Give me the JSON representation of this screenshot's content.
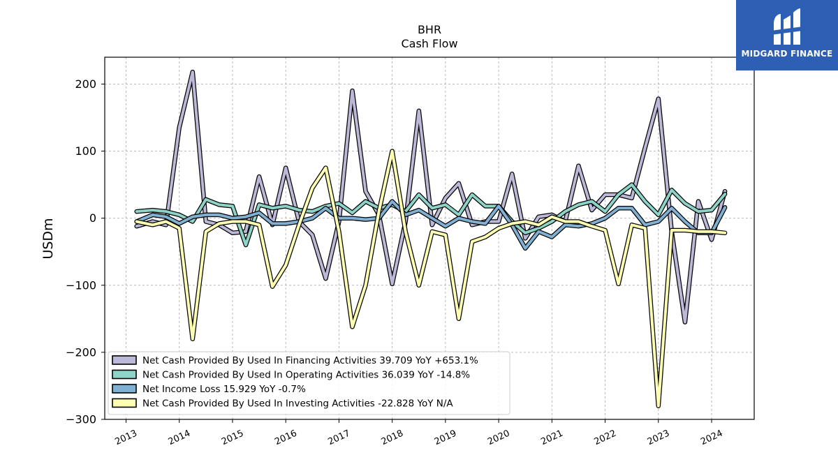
{
  "brand": {
    "name": "MIDGARD FINANCE",
    "bg_color": "#2d5fb4",
    "text_color": "#ffffff",
    "icon": "midgard-logo-icon"
  },
  "chart_data": {
    "type": "line",
    "title": "BHR",
    "subtitle": "Cash Flow",
    "xlabel": "",
    "ylabel": "USDm",
    "ylim": [
      -300,
      240
    ],
    "xlim": [
      2012.6,
      2024.8
    ],
    "yticks": [
      200,
      100,
      0,
      -100,
      -200,
      -300
    ],
    "ytick_labels": [
      "200",
      "100",
      "0",
      "−100",
      "−200",
      "−300"
    ],
    "xticks": [
      2013,
      2014,
      2015,
      2016,
      2017,
      2018,
      2019,
      2020,
      2021,
      2022,
      2023,
      2024
    ],
    "xtick_labels": [
      "2013",
      "2014",
      "2015",
      "2016",
      "2017",
      "2018",
      "2019",
      "2020",
      "2021",
      "2022",
      "2023",
      "2024"
    ],
    "grid": true,
    "legend_position": "lower-left",
    "series": [
      {
        "name": "Net Cash Provided By Used In Financing Activities",
        "legend_label": "Net Cash Provided By Used In Financing Activities  39.709 YoY +653.1%",
        "color": "#bcb9d8",
        "points": [
          [
            2013.2,
            -12
          ],
          [
            2013.5,
            -5
          ],
          [
            2013.75,
            -10
          ],
          [
            2014.0,
            135
          ],
          [
            2014.25,
            218
          ],
          [
            2014.5,
            -5
          ],
          [
            2014.75,
            -10
          ],
          [
            2015.0,
            -22
          ],
          [
            2015.25,
            -20
          ],
          [
            2015.5,
            62
          ],
          [
            2015.75,
            -10
          ],
          [
            2016.0,
            75
          ],
          [
            2016.25,
            -5
          ],
          [
            2016.5,
            -25
          ],
          [
            2016.75,
            -90
          ],
          [
            2017.0,
            -5
          ],
          [
            2017.25,
            190
          ],
          [
            2017.5,
            40
          ],
          [
            2017.75,
            5
          ],
          [
            2018.0,
            -98
          ],
          [
            2018.25,
            -5
          ],
          [
            2018.5,
            160
          ],
          [
            2018.75,
            -10
          ],
          [
            2019.0,
            30
          ],
          [
            2019.25,
            52
          ],
          [
            2019.5,
            -10
          ],
          [
            2019.75,
            -5
          ],
          [
            2020.0,
            -5
          ],
          [
            2020.25,
            66
          ],
          [
            2020.5,
            -30
          ],
          [
            2020.75,
            2
          ],
          [
            2021.0,
            5
          ],
          [
            2021.25,
            -5
          ],
          [
            2021.5,
            78
          ],
          [
            2021.75,
            12
          ],
          [
            2022.0,
            35
          ],
          [
            2022.25,
            35
          ],
          [
            2022.5,
            30
          ],
          [
            2022.75,
            105
          ],
          [
            2023.0,
            178
          ],
          [
            2023.25,
            -20
          ],
          [
            2023.5,
            -155
          ],
          [
            2023.75,
            25
          ],
          [
            2024.0,
            -32
          ],
          [
            2024.25,
            40
          ]
        ]
      },
      {
        "name": "Net Cash Provided By Used In Operating Activities",
        "legend_label": "Net Cash Provided By Used In Operating Activities  36.039 YoY -14.8%",
        "color": "#8dd3c7",
        "points": [
          [
            2013.2,
            10
          ],
          [
            2013.5,
            12
          ],
          [
            2013.75,
            10
          ],
          [
            2014.0,
            5
          ],
          [
            2014.25,
            -5
          ],
          [
            2014.5,
            28
          ],
          [
            2014.75,
            20
          ],
          [
            2015.0,
            18
          ],
          [
            2015.25,
            -40
          ],
          [
            2015.5,
            20
          ],
          [
            2015.75,
            15
          ],
          [
            2016.0,
            18
          ],
          [
            2016.25,
            12
          ],
          [
            2016.5,
            10
          ],
          [
            2016.75,
            18
          ],
          [
            2017.0,
            22
          ],
          [
            2017.25,
            8
          ],
          [
            2017.5,
            25
          ],
          [
            2017.75,
            15
          ],
          [
            2018.0,
            20
          ],
          [
            2018.25,
            10
          ],
          [
            2018.5,
            35
          ],
          [
            2018.75,
            15
          ],
          [
            2019.0,
            20
          ],
          [
            2019.25,
            5
          ],
          [
            2019.5,
            35
          ],
          [
            2019.75,
            18
          ],
          [
            2020.0,
            18
          ],
          [
            2020.25,
            -5
          ],
          [
            2020.5,
            -22
          ],
          [
            2020.75,
            -15
          ],
          [
            2021.0,
            -5
          ],
          [
            2021.25,
            10
          ],
          [
            2021.5,
            20
          ],
          [
            2021.75,
            25
          ],
          [
            2022.0,
            10
          ],
          [
            2022.25,
            35
          ],
          [
            2022.5,
            50
          ],
          [
            2022.75,
            25
          ],
          [
            2023.0,
            5
          ],
          [
            2023.25,
            42
          ],
          [
            2023.5,
            22
          ],
          [
            2023.75,
            10
          ],
          [
            2024.0,
            12
          ],
          [
            2024.25,
            36
          ]
        ]
      },
      {
        "name": "Net Income Loss",
        "legend_label": "Net Income Loss  15.929 YoY -0.7%",
        "color": "#80b1d3",
        "points": [
          [
            2013.2,
            -5
          ],
          [
            2013.5,
            5
          ],
          [
            2013.75,
            2
          ],
          [
            2014.0,
            -8
          ],
          [
            2014.25,
            2
          ],
          [
            2014.5,
            5
          ],
          [
            2014.75,
            5
          ],
          [
            2015.0,
            0
          ],
          [
            2015.25,
            2
          ],
          [
            2015.5,
            8
          ],
          [
            2015.75,
            -8
          ],
          [
            2016.0,
            -8
          ],
          [
            2016.25,
            -5
          ],
          [
            2016.5,
            0
          ],
          [
            2016.75,
            15
          ],
          [
            2017.0,
            0
          ],
          [
            2017.25,
            0
          ],
          [
            2017.5,
            -2
          ],
          [
            2017.75,
            0
          ],
          [
            2018.0,
            25
          ],
          [
            2018.25,
            5
          ],
          [
            2018.5,
            12
          ],
          [
            2018.75,
            0
          ],
          [
            2019.0,
            -12
          ],
          [
            2019.25,
            0
          ],
          [
            2019.5,
            -5
          ],
          [
            2019.75,
            -8
          ],
          [
            2020.0,
            18
          ],
          [
            2020.25,
            -10
          ],
          [
            2020.5,
            -45
          ],
          [
            2020.75,
            -20
          ],
          [
            2021.0,
            -28
          ],
          [
            2021.25,
            -10
          ],
          [
            2021.5,
            -12
          ],
          [
            2021.75,
            -8
          ],
          [
            2022.0,
            0
          ],
          [
            2022.25,
            15
          ],
          [
            2022.5,
            15
          ],
          [
            2022.75,
            -10
          ],
          [
            2023.0,
            -5
          ],
          [
            2023.25,
            15
          ],
          [
            2023.5,
            -5
          ],
          [
            2023.75,
            -22
          ],
          [
            2024.0,
            -22
          ],
          [
            2024.25,
            16
          ]
        ]
      },
      {
        "name": "Net Cash Provided By Used In Investing Activities",
        "legend_label": "Net Cash Provided By Used In Investing Activities  -22.828 YoY N/A",
        "color": "#ffffb3",
        "points": [
          [
            2013.2,
            -5
          ],
          [
            2013.5,
            -10
          ],
          [
            2013.75,
            -5
          ],
          [
            2014.0,
            -15
          ],
          [
            2014.25,
            -180
          ],
          [
            2014.5,
            -20
          ],
          [
            2014.75,
            -8
          ],
          [
            2015.0,
            -5
          ],
          [
            2015.25,
            -5
          ],
          [
            2015.5,
            -10
          ],
          [
            2015.75,
            -102
          ],
          [
            2016.0,
            -70
          ],
          [
            2016.25,
            -10
          ],
          [
            2016.5,
            45
          ],
          [
            2016.75,
            75
          ],
          [
            2017.0,
            -20
          ],
          [
            2017.25,
            -162
          ],
          [
            2017.5,
            -100
          ],
          [
            2017.75,
            10
          ],
          [
            2018.0,
            100
          ],
          [
            2018.25,
            -20
          ],
          [
            2018.5,
            -100
          ],
          [
            2018.75,
            -20
          ],
          [
            2019.0,
            -25
          ],
          [
            2019.25,
            -150
          ],
          [
            2019.5,
            -35
          ],
          [
            2019.75,
            -28
          ],
          [
            2020.0,
            -15
          ],
          [
            2020.25,
            -8
          ],
          [
            2020.5,
            -5
          ],
          [
            2020.75,
            -10
          ],
          [
            2021.0,
            2
          ],
          [
            2021.25,
            -5
          ],
          [
            2021.5,
            -5
          ],
          [
            2021.75,
            -12
          ],
          [
            2022.0,
            -18
          ],
          [
            2022.25,
            -98
          ],
          [
            2022.5,
            -10
          ],
          [
            2022.75,
            -15
          ],
          [
            2023.0,
            -280
          ],
          [
            2023.25,
            -18
          ],
          [
            2023.5,
            -18
          ],
          [
            2023.75,
            -20
          ],
          [
            2024.0,
            -20
          ],
          [
            2024.25,
            -22
          ]
        ]
      }
    ]
  }
}
